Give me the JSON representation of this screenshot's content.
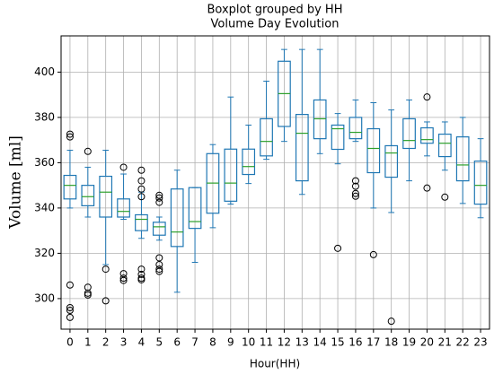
{
  "chart_data": {
    "type": "boxplot",
    "title": "Boxplot grouped by HH",
    "subtitle": "Volume Day Evolution",
    "x_label": "Hour(HH)",
    "y_label": "Volume [ml]",
    "categories": [
      "0",
      "1",
      "2",
      "3",
      "4",
      "5",
      "6",
      "7",
      "8",
      "9",
      "10",
      "11",
      "12",
      "13",
      "14",
      "15",
      "16",
      "17",
      "18",
      "19",
      "20",
      "21",
      "22",
      "23"
    ],
    "boxes": [
      {
        "whislo": 340,
        "q1": 344,
        "med": 350,
        "q3": 354.4,
        "whishi": 365.5,
        "fliers": [
          372.6,
          371.4,
          306,
          296,
          294.8,
          291.7
        ]
      },
      {
        "whislo": 336,
        "q1": 341,
        "med": 345,
        "q3": 350,
        "whishi": 358,
        "fliers": [
          365,
          305,
          302.4,
          301.6
        ]
      },
      {
        "whislo": 315,
        "q1": 336,
        "med": 347,
        "q3": 354,
        "whishi": 365.5,
        "fliers": [
          313,
          299
        ]
      },
      {
        "whislo": 335,
        "q1": 336,
        "med": 338.5,
        "q3": 344,
        "whishi": 355,
        "fliers": [
          358,
          311,
          309,
          308
        ]
      },
      {
        "whislo": 326.6,
        "q1": 330,
        "med": 335,
        "q3": 337,
        "whishi": 347,
        "fliers": [
          356.7,
          352,
          348.4,
          345,
          313,
          310.7,
          309,
          308.3
        ]
      },
      {
        "whislo": 325.8,
        "q1": 328,
        "med": 331.7,
        "q3": 333.7,
        "whishi": 336,
        "fliers": [
          345.6,
          344.4,
          342.5,
          318,
          315,
          313,
          312
        ]
      },
      {
        "whislo": 302.8,
        "q1": 323,
        "med": 329.4,
        "q3": 348.4,
        "whishi": 356.7,
        "fliers": []
      },
      {
        "whislo": 316,
        "q1": 331,
        "med": 334,
        "q3": 349,
        "whishi": 349,
        "fliers": []
      },
      {
        "whislo": 331.3,
        "q1": 337.7,
        "med": 351,
        "q3": 364,
        "whishi": 368,
        "fliers": []
      },
      {
        "whislo": 341.7,
        "q1": 343,
        "med": 351,
        "q3": 366,
        "whishi": 389,
        "fliers": []
      },
      {
        "whislo": 350.8,
        "q1": 354.8,
        "med": 358.3,
        "q3": 366,
        "whishi": 376.6,
        "fliers": []
      },
      {
        "whislo": 361.5,
        "q1": 363,
        "med": 369.4,
        "q3": 379.4,
        "whishi": 396,
        "fliers": []
      },
      {
        "whislo": 369.4,
        "q1": 376,
        "med": 390.5,
        "q3": 404.8,
        "whishi": 410,
        "fliers": []
      },
      {
        "whislo": 346,
        "q1": 352,
        "med": 373,
        "q3": 381.3,
        "whishi": 410,
        "fliers": []
      },
      {
        "whislo": 364,
        "q1": 370.6,
        "med": 379.4,
        "q3": 387.7,
        "whishi": 410,
        "fliers": []
      },
      {
        "whislo": 359.5,
        "q1": 365.9,
        "med": 375,
        "q3": 376.6,
        "whishi": 381.7,
        "fliers": [
          322.2
        ]
      },
      {
        "whislo": 369.4,
        "q1": 370.6,
        "med": 373.4,
        "q3": 380,
        "whishi": 387.7,
        "fliers": [
          352,
          349.6,
          346.4,
          345.2
        ]
      },
      {
        "whislo": 340,
        "q1": 355.6,
        "med": 366.3,
        "q3": 375,
        "whishi": 386.5,
        "fliers": [
          319.4
        ]
      },
      {
        "whislo": 338,
        "q1": 353.6,
        "med": 364.3,
        "q3": 367.5,
        "whishi": 383.3,
        "fliers": [
          290
        ]
      },
      {
        "whislo": 352,
        "q1": 366.3,
        "med": 369.8,
        "q3": 379.4,
        "whishi": 387.7,
        "fliers": []
      },
      {
        "whislo": 363,
        "q1": 368.6,
        "med": 370.2,
        "q3": 375.4,
        "whishi": 378,
        "fliers": [
          389,
          348.8
        ]
      },
      {
        "whislo": 356.7,
        "q1": 362.7,
        "med": 368.6,
        "q3": 372.6,
        "whishi": 378,
        "fliers": [
          344.8
        ]
      },
      {
        "whislo": 342,
        "q1": 352,
        "med": 359,
        "q3": 371.4,
        "whishi": 380,
        "fliers": []
      },
      {
        "whislo": 335.7,
        "q1": 341.7,
        "med": 350,
        "q3": 360.7,
        "whishi": 370.6,
        "fliers": []
      }
    ],
    "box_color": "#1f77b4",
    "median_color": "#2ca02c",
    "ylim": [
      286.5,
      416
    ],
    "yticks": [
      300,
      320,
      340,
      360,
      380,
      400
    ],
    "grid": true
  }
}
